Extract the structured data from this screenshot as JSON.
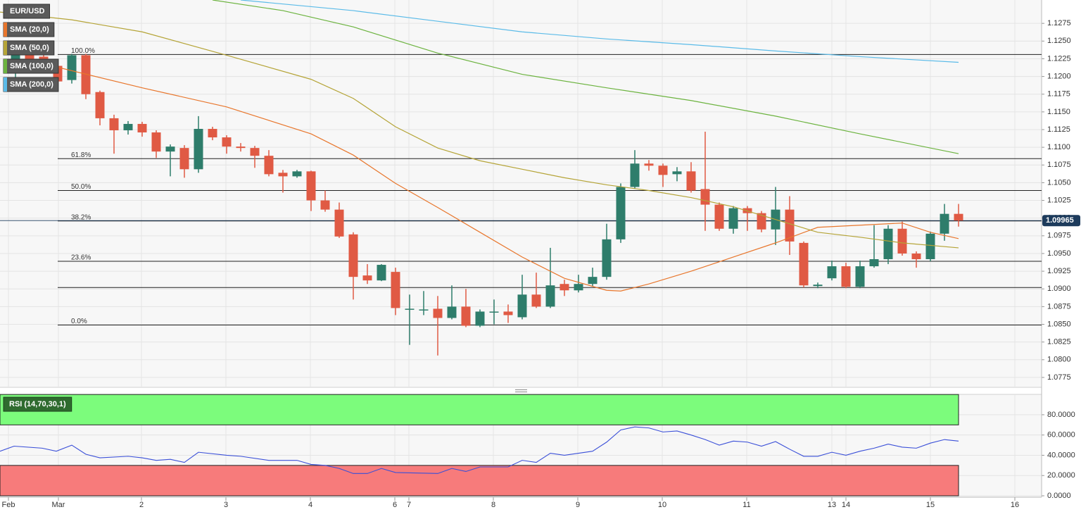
{
  "chart_data": [
    {
      "type": "candlestick",
      "title": "EUR/USD",
      "up_color": "#2e7d6b",
      "down_color": "#e05a44",
      "x": [
        1,
        2,
        3,
        4,
        5,
        6,
        7,
        8,
        9,
        10,
        11,
        12,
        13,
        14,
        15,
        16,
        17,
        18,
        19,
        20,
        21,
        22,
        23,
        24,
        25,
        26,
        27,
        28,
        29,
        30,
        31,
        32,
        33,
        34,
        35,
        36,
        37,
        38,
        39,
        40,
        41,
        42,
        43,
        44,
        45,
        46,
        47,
        48,
        49,
        50,
        51,
        52,
        53,
        54,
        55,
        56,
        57,
        58,
        59,
        60,
        61,
        62,
        63,
        64,
        65,
        66,
        67,
        68
      ],
      "open": [
        1.1205,
        1.124,
        1.1228,
        1.1215,
        1.1195,
        1.123,
        1.1178,
        1.1141,
        1.1124,
        1.1133,
        1.1121,
        1.1094,
        1.1099,
        1.1069,
        1.1126,
        1.1114,
        1.1101,
        1.1099,
        1.1088,
        1.1064,
        1.1059,
        1.1066,
        1.1025,
        1.1012,
        1.0977,
        1.0919,
        1.0912,
        1.0924,
        1.0872,
        1.0871,
        1.0872,
        1.0859,
        1.0875,
        1.0848,
        1.0868,
        1.0868,
        1.086,
        1.0892,
        1.0875,
        1.0907,
        1.0898,
        1.0907,
        1.0917,
        1.097,
        1.1044,
        1.1077,
        1.1074,
        1.1062,
        1.1066,
        1.1041,
        1.1019,
        1.0985,
        1.1014,
        1.1007,
        1.0984,
        1.1012,
        1.0965,
        1.0904,
        1.0915,
        1.0932,
        1.0903,
        1.0932,
        1.0942,
        1.0985,
        1.095,
        1.0942,
        1.0978,
        1.1006
      ],
      "high": [
        1.124,
        1.1245,
        1.1232,
        1.122,
        1.1232,
        1.1232,
        1.118,
        1.1146,
        1.1137,
        1.1136,
        1.1124,
        1.1104,
        1.1103,
        1.1144,
        1.1129,
        1.1117,
        1.1106,
        1.1102,
        1.1096,
        1.1068,
        1.1068,
        1.1067,
        1.1039,
        1.1022,
        1.098,
        1.0935,
        1.0935,
        1.093,
        1.0892,
        1.0897,
        1.089,
        1.0905,
        1.09,
        1.0871,
        1.0885,
        1.0878,
        1.092,
        1.0923,
        1.0958,
        1.0913,
        1.092,
        1.093,
        1.0992,
        1.1049,
        1.1096,
        1.1082,
        1.1077,
        1.1072,
        1.1079,
        1.1122,
        1.1022,
        1.1017,
        1.1017,
        1.101,
        1.1044,
        1.1031,
        1.0967,
        1.0909,
        1.094,
        1.0937,
        1.094,
        1.099,
        1.099,
        1.0995,
        1.0953,
        1.0981,
        1.102,
        1.102
      ],
      "low": [
        1.1195,
        1.1215,
        1.1205,
        1.1188,
        1.119,
        1.1168,
        1.1131,
        1.1091,
        1.1118,
        1.1115,
        1.1085,
        1.1059,
        1.1057,
        1.1064,
        1.111,
        1.1091,
        1.1094,
        1.1071,
        1.1059,
        1.1036,
        1.1057,
        1.101,
        1.1009,
        1.0972,
        1.0885,
        1.0907,
        1.0911,
        1.0863,
        1.0821,
        1.0863,
        1.0806,
        1.0857,
        1.0846,
        1.0846,
        1.085,
        1.0852,
        1.0857,
        1.0873,
        1.0873,
        1.089,
        1.0895,
        1.0904,
        1.0913,
        1.0965,
        1.1042,
        1.1067,
        1.1044,
        1.1052,
        1.1036,
        1.0982,
        1.0982,
        1.0978,
        1.0982,
        1.098,
        1.0962,
        1.0948,
        1.0902,
        1.0901,
        1.0912,
        1.0901,
        1.0901,
        1.093,
        1.0935,
        1.0947,
        1.093,
        1.0939,
        1.0968,
        1.0988
      ],
      "close": [
        1.1235,
        1.122,
        1.121,
        1.1193,
        1.123,
        1.1175,
        1.1141,
        1.1124,
        1.1133,
        1.1121,
        1.1094,
        1.1101,
        1.1069,
        1.1126,
        1.1114,
        1.1101,
        1.1099,
        1.1088,
        1.1062,
        1.1059,
        1.1066,
        1.1025,
        1.1012,
        1.0974,
        1.0917,
        1.0912,
        1.0934,
        1.0873,
        1.0872,
        1.0871,
        1.0859,
        1.0875,
        1.0848,
        1.0868,
        1.0868,
        1.0863,
        1.0892,
        1.0875,
        1.0905,
        1.0898,
        1.0907,
        1.0917,
        1.097,
        1.1044,
        1.1077,
        1.1074,
        1.1061,
        1.1066,
        1.1039,
        1.1019,
        1.0985,
        1.1014,
        1.1007,
        1.0984,
        1.1012,
        1.0967,
        1.0905,
        1.0906,
        1.0932,
        1.0903,
        1.0932,
        1.0942,
        1.0985,
        1.095,
        1.0942,
        1.0978,
        1.1006,
        1.09965
      ],
      "series": [
        {
          "name": "SMA (20,0)",
          "color": "#e8762c",
          "x": [
            1,
            4,
            10,
            16,
            22,
            25,
            28,
            31,
            34,
            37,
            40,
            43,
            44,
            46,
            49,
            52,
            55,
            58,
            61,
            64,
            66,
            68
          ],
          "values": [
            1.1208,
            1.1213,
            1.1184,
            1.1157,
            1.1119,
            1.1089,
            1.1049,
            1.1015,
            1.098,
            1.0945,
            1.0915,
            1.0898,
            1.0897,
            1.0907,
            1.0925,
            1.0945,
            1.0965,
            1.0987,
            1.099,
            1.0993,
            1.098,
            1.0971
          ]
        },
        {
          "name": "SMA (50,0)",
          "color": "#b5a437",
          "x": [
            -0.1,
            5,
            10,
            16,
            22,
            25,
            28,
            31,
            34,
            37,
            40,
            43,
            46,
            49,
            52,
            55,
            58,
            61,
            64,
            68
          ],
          "values": [
            1.1291,
            1.128,
            1.1263,
            1.123,
            1.1196,
            1.1169,
            1.1129,
            1.1099,
            1.1081,
            1.1069,
            1.1057,
            1.1047,
            1.1039,
            1.1029,
            1.1016,
            1.0998,
            1.098,
            1.0973,
            1.0965,
            1.0958
          ]
        },
        {
          "name": "SMA (100,0)",
          "color": "#6cb33f",
          "x": [
            15,
            20,
            25,
            31,
            37,
            43,
            49,
            55,
            61,
            68
          ],
          "values": [
            1.1308,
            1.1293,
            1.127,
            1.1233,
            1.1203,
            1.1184,
            1.1166,
            1.1144,
            1.1119,
            1.1091
          ]
        },
        {
          "name": "SMA (200,0)",
          "color": "#5bbbe8",
          "x": [
            17,
            25,
            31,
            37,
            43,
            49,
            55,
            61,
            68
          ],
          "values": [
            1.1308,
            1.1293,
            1.1278,
            1.1263,
            1.1253,
            1.1245,
            1.1236,
            1.1228,
            1.122
          ]
        }
      ],
      "fib_levels": [
        {
          "value": 1.1231,
          "label": "100.0%"
        },
        {
          "value": 1.1084,
          "label": "61.8%"
        },
        {
          "value": 1.1039,
          "label": "50.0%"
        },
        {
          "value": 1.0996,
          "label": "38.2%"
        },
        {
          "value": 1.0939,
          "label": "23.6%"
        },
        {
          "value": 1.0849,
          "label": "0.0%"
        }
      ],
      "levels": [
        1.0902
      ],
      "last_price": 1.09965,
      "xlim": [
        -0.1,
        73.9
      ],
      "ylim": [
        1.0761,
        1.1308
      ],
      "yticks": [
        {
          "value": 1.0775,
          "label": "1.0775"
        },
        {
          "value": 1.08,
          "label": "1.0800"
        },
        {
          "value": 1.0825,
          "label": "1.0825"
        },
        {
          "value": 1.085,
          "label": "1.0850"
        },
        {
          "value": 1.0875,
          "label": "1.0875"
        },
        {
          "value": 1.09,
          "label": "1.0900"
        },
        {
          "value": 1.0925,
          "label": "1.0925"
        },
        {
          "value": 1.095,
          "label": "1.0950"
        },
        {
          "value": 1.0975,
          "label": "1.0975"
        },
        {
          "value": 1.1,
          "label": "1.1000"
        },
        {
          "value": 1.1025,
          "label": "1.1025"
        },
        {
          "value": 1.105,
          "label": "1.1050"
        },
        {
          "value": 1.1075,
          "label": "1.1075"
        },
        {
          "value": 1.11,
          "label": "1.1100"
        },
        {
          "value": 1.1125,
          "label": "1.1125"
        },
        {
          "value": 1.115,
          "label": "1.1150"
        },
        {
          "value": 1.1175,
          "label": "1.1175"
        },
        {
          "value": 1.12,
          "label": "1.1200"
        },
        {
          "value": 1.1225,
          "label": "1.1225"
        },
        {
          "value": 1.125,
          "label": "1.1250"
        },
        {
          "value": 1.1275,
          "label": "1.1275"
        }
      ],
      "grid": true
    },
    {
      "type": "line",
      "title": "RSI (14,70,30,1)",
      "color": "#3a4fd8",
      "overbought": 70,
      "oversold": 30,
      "overbought_color": "#7cfc7c",
      "oversold_color": "#f77b7b",
      "x": [
        -0.1,
        0.9,
        2.9,
        3.9,
        5,
        6,
        7,
        9,
        10,
        11,
        12,
        13,
        14,
        16,
        17,
        19,
        21,
        22,
        23,
        24,
        25,
        26,
        27,
        28,
        31,
        32,
        33,
        34,
        36,
        37,
        38,
        39,
        40,
        42,
        43,
        44,
        45,
        46,
        47,
        48,
        49,
        50,
        51,
        52,
        53,
        54,
        55,
        56,
        57,
        58,
        59,
        60,
        61,
        62,
        63,
        64,
        65,
        66,
        67,
        68
      ],
      "values": [
        44,
        49,
        47,
        44,
        50,
        41,
        37.5,
        39,
        37.5,
        35,
        36,
        33,
        43,
        40,
        39,
        35,
        35,
        31,
        30,
        27,
        22,
        22,
        27,
        23,
        22,
        27,
        24,
        28.5,
        28.5,
        35,
        33,
        42,
        40,
        44,
        53,
        65,
        68,
        67,
        63,
        64,
        60,
        55.5,
        50,
        54,
        53,
        49,
        53.5,
        46,
        39,
        39,
        43,
        40,
        44,
        47,
        51,
        48,
        47,
        52,
        55.5,
        54
      ],
      "xlim": [
        -0.1,
        73.9
      ],
      "ylim": [
        -1.4,
        100.1
      ],
      "yticks": [
        {
          "value": 0,
          "label": "0.0000"
        },
        {
          "value": 20,
          "label": "20.0000"
        },
        {
          "value": 40,
          "label": "40.0000"
        },
        {
          "value": 60,
          "label": "60.0000"
        },
        {
          "value": 80,
          "label": "80.0000"
        }
      ],
      "xticks": [
        {
          "value": 0.5,
          "label": "Feb"
        },
        {
          "value": 4.05,
          "label": "Mar"
        },
        {
          "value": 9.95,
          "label": "2"
        },
        {
          "value": 15.95,
          "label": "3"
        },
        {
          "value": 21.95,
          "label": "4"
        },
        {
          "value": 27.95,
          "label": "6"
        },
        {
          "value": 28.95,
          "label": "7"
        },
        {
          "value": 34.95,
          "label": "8"
        },
        {
          "value": 40.95,
          "label": "9"
        },
        {
          "value": 46.95,
          "label": "10"
        },
        {
          "value": 52.95,
          "label": "11"
        },
        {
          "value": 59,
          "label": "13"
        },
        {
          "value": 60,
          "label": "14"
        },
        {
          "value": 66,
          "label": "15"
        },
        {
          "value": 72,
          "label": "16"
        }
      ],
      "grid": true
    }
  ]
}
